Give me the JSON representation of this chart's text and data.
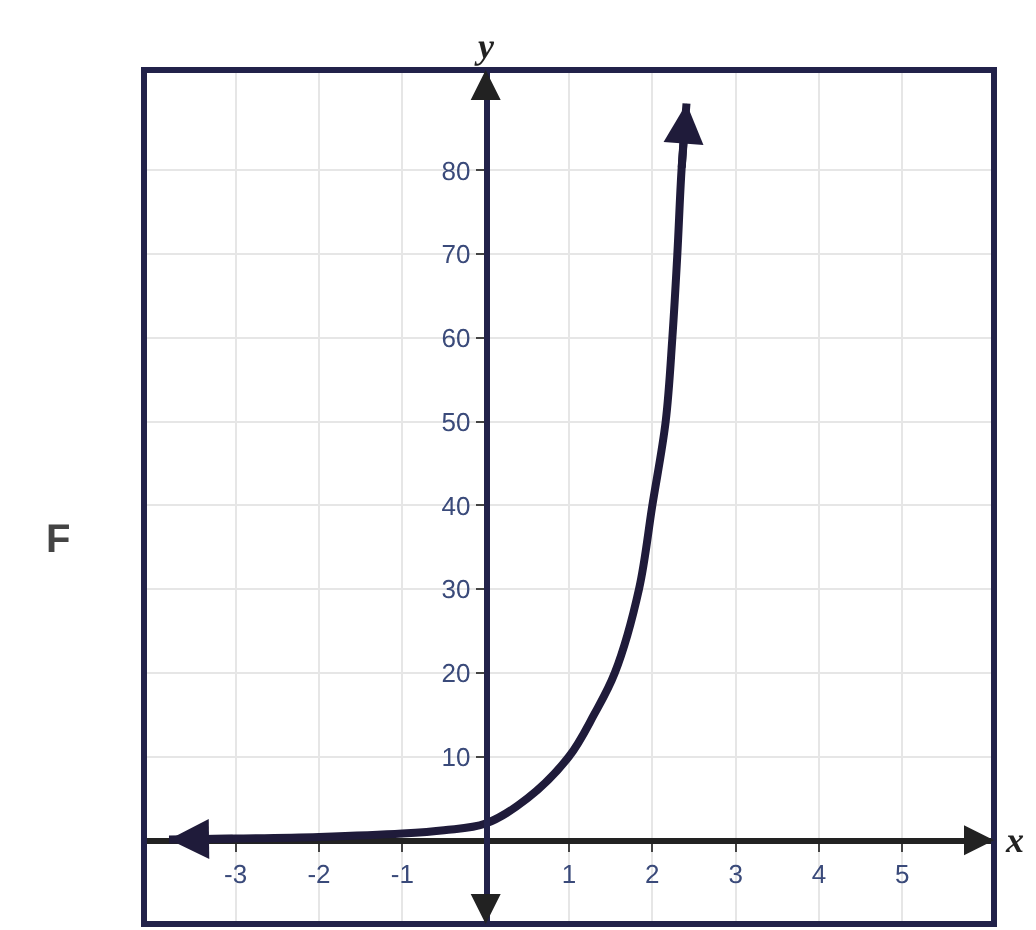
{
  "chart_data": {
    "type": "line",
    "xlabel": "x",
    "ylabel": "y",
    "series": [
      {
        "color": "#1f1b3a",
        "x": [
          -3.8,
          -3,
          -2,
          -1,
          -0.5,
          0,
          0.5,
          1.0,
          1.3,
          1.55,
          1.84,
          2.0,
          2.16,
          2.24,
          2.3,
          2.35,
          2.41
        ],
        "values": [
          0.1,
          0.2,
          0.4,
          0.8,
          1.2,
          2,
          5,
          10,
          15,
          20,
          30,
          40,
          50,
          60,
          70,
          80,
          88
        ]
      }
    ],
    "xlim": [
      -4.1,
      6.1
    ],
    "ylim": [
      -10,
      92
    ],
    "xticks": [
      -3,
      -2,
      -1,
      1,
      2,
      3,
      4,
      5
    ],
    "yticks": [
      10,
      20,
      30,
      40,
      50,
      60,
      70,
      80
    ],
    "grid": true,
    "annotations": [
      "F"
    ]
  }
}
